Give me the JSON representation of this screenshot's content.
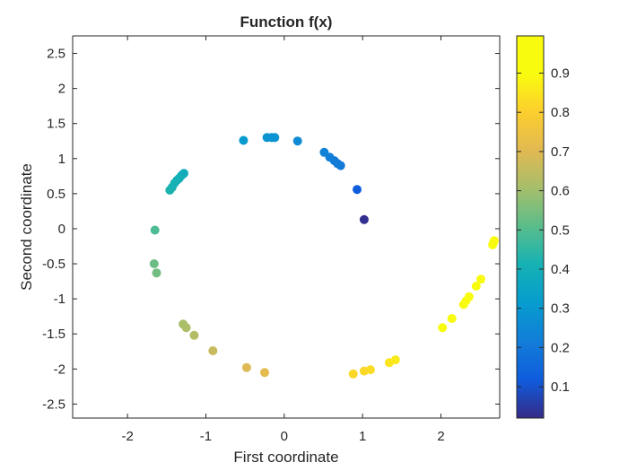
{
  "chart_data": {
    "type": "scatter",
    "title": "Function f(x)",
    "xlabel": "First coordinate",
    "ylabel": "Second coordinate",
    "xlim": [
      -2.7,
      2.75
    ],
    "ylim": [
      -2.7,
      2.75
    ],
    "xticks": [
      -2,
      -1,
      0,
      1,
      2
    ],
    "xtick_labels": [
      "-2",
      "-1",
      "0",
      "1",
      "2"
    ],
    "yticks": [
      -2.5,
      -2,
      -1.5,
      -1,
      -0.5,
      0,
      0.5,
      1,
      1.5,
      2,
      2.5
    ],
    "ytick_labels": [
      "-2.5",
      "-2",
      "-1.5",
      "-1",
      "-0.5",
      "0",
      "0.5",
      "1",
      "1.5",
      "2",
      "2.5"
    ],
    "grid": false,
    "colormap": "parula",
    "colorbar": {
      "limits": [
        0.02,
        0.995
      ],
      "ticks": [
        0.1,
        0.2,
        0.3,
        0.4,
        0.5,
        0.6,
        0.7,
        0.8,
        0.9
      ],
      "tick_labels": [
        "0.1",
        "0.2",
        "0.3",
        "0.4",
        "0.5",
        "0.6",
        "0.7",
        "0.8",
        "0.9"
      ]
    },
    "points": [
      {
        "x": 1.02,
        "y": 0.13,
        "c": 0.03
      },
      {
        "x": 0.93,
        "y": 0.56,
        "c": 0.12
      },
      {
        "x": 0.72,
        "y": 0.9,
        "c": 0.2
      },
      {
        "x": 0.68,
        "y": 0.93,
        "c": 0.21
      },
      {
        "x": 0.64,
        "y": 0.97,
        "c": 0.21
      },
      {
        "x": 0.58,
        "y": 1.02,
        "c": 0.22
      },
      {
        "x": 0.51,
        "y": 1.09,
        "c": 0.23
      },
      {
        "x": 0.17,
        "y": 1.25,
        "c": 0.26
      },
      {
        "x": -0.12,
        "y": 1.3,
        "c": 0.28
      },
      {
        "x": -0.16,
        "y": 1.3,
        "c": 0.28
      },
      {
        "x": -0.22,
        "y": 1.3,
        "c": 0.29
      },
      {
        "x": -0.52,
        "y": 1.26,
        "c": 0.31
      },
      {
        "x": -1.28,
        "y": 0.79,
        "c": 0.39
      },
      {
        "x": -1.31,
        "y": 0.76,
        "c": 0.39
      },
      {
        "x": -1.34,
        "y": 0.72,
        "c": 0.4
      },
      {
        "x": -1.37,
        "y": 0.69,
        "c": 0.4
      },
      {
        "x": -1.4,
        "y": 0.65,
        "c": 0.41
      },
      {
        "x": -1.43,
        "y": 0.59,
        "c": 0.41
      },
      {
        "x": -1.46,
        "y": 0.55,
        "c": 0.42
      },
      {
        "x": -1.65,
        "y": -0.02,
        "c": 0.49
      },
      {
        "x": -1.66,
        "y": -0.5,
        "c": 0.53
      },
      {
        "x": -1.63,
        "y": -0.63,
        "c": 0.54
      },
      {
        "x": -1.29,
        "y": -1.36,
        "c": 0.61
      },
      {
        "x": -1.25,
        "y": -1.41,
        "c": 0.62
      },
      {
        "x": -1.15,
        "y": -1.52,
        "c": 0.63
      },
      {
        "x": -0.91,
        "y": -1.74,
        "c": 0.66
      },
      {
        "x": -0.48,
        "y": -1.98,
        "c": 0.7
      },
      {
        "x": -0.25,
        "y": -2.05,
        "c": 0.71
      },
      {
        "x": 0.88,
        "y": -2.07,
        "c": 0.82
      },
      {
        "x": 1.02,
        "y": -2.03,
        "c": 0.82
      },
      {
        "x": 1.1,
        "y": -2.01,
        "c": 0.83
      },
      {
        "x": 1.34,
        "y": -1.91,
        "c": 0.85
      },
      {
        "x": 1.42,
        "y": -1.87,
        "c": 0.86
      },
      {
        "x": 2.02,
        "y": -1.41,
        "c": 0.91
      },
      {
        "x": 2.14,
        "y": -1.28,
        "c": 0.92
      },
      {
        "x": 2.29,
        "y": -1.08,
        "c": 0.94
      },
      {
        "x": 2.32,
        "y": -1.03,
        "c": 0.94
      },
      {
        "x": 2.36,
        "y": -0.97,
        "c": 0.94
      },
      {
        "x": 2.45,
        "y": -0.82,
        "c": 0.95
      },
      {
        "x": 2.51,
        "y": -0.72,
        "c": 0.96
      },
      {
        "x": 2.66,
        "y": -0.23,
        "c": 0.98
      },
      {
        "x": 2.67,
        "y": -0.2,
        "c": 0.98
      },
      {
        "x": 2.68,
        "y": -0.17,
        "c": 0.98
      }
    ]
  }
}
